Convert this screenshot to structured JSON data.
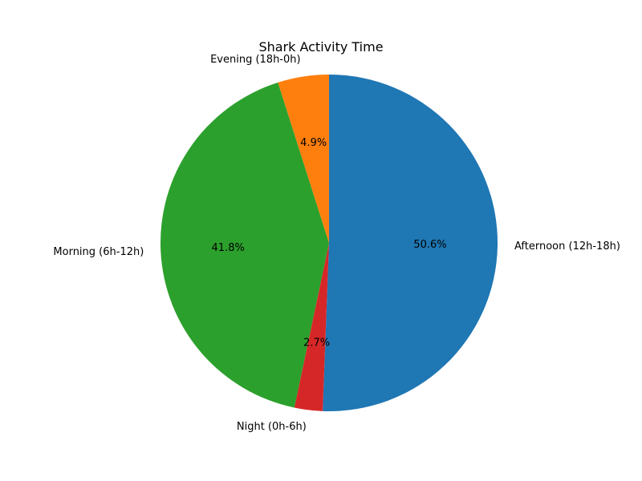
{
  "chart_data": {
    "type": "pie",
    "title": "Shark Activity Time",
    "start_angle_deg": 90,
    "direction": "clockwise",
    "slices": [
      {
        "label": "Afternoon (12h-18h)",
        "value": 50.6,
        "pct_label": "50.6%",
        "color": "#1f77b4"
      },
      {
        "label": "Night (0h-6h)",
        "value": 2.7,
        "pct_label": "2.7%",
        "color": "#d62728"
      },
      {
        "label": "Morning (6h-12h)",
        "value": 41.8,
        "pct_label": "41.8%",
        "color": "#2ca02c"
      },
      {
        "label": "Evening (18h-0h)",
        "value": 4.9,
        "pct_label": "4.9%",
        "color": "#ff7f0e"
      }
    ]
  }
}
